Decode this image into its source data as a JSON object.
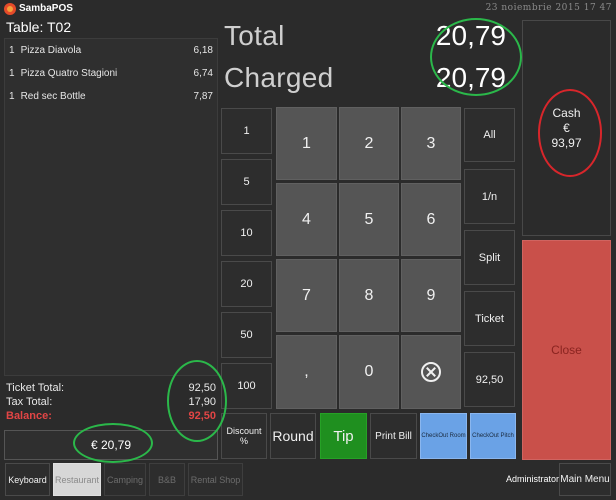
{
  "app": {
    "name": "SambaPOS",
    "datetime": "23 noiembrie 2015 17 47"
  },
  "ticket": {
    "table_label": "Table: T02",
    "orders": [
      {
        "qty": "1",
        "name": "Pizza Diavola",
        "price": "6,18"
      },
      {
        "qty": "1",
        "name": "Pizza Quatro Stagioni",
        "price": "6,74"
      },
      {
        "qty": "1",
        "name": "Red sec Bottle",
        "price": "7,87"
      }
    ],
    "ticket_total_label": "Ticket Total:",
    "ticket_total": "92,50",
    "tax_total_label": "Tax Total:",
    "tax_total": "17,90",
    "balance_label": "Balance:",
    "balance": "92,50",
    "amount_box": "€ 20,79"
  },
  "summary": {
    "total_label": "Total",
    "total_value": "20,79",
    "charged_label": "Charged",
    "charged_value": "20,79"
  },
  "amount_buttons": [
    "1",
    "5",
    "10",
    "20",
    "50",
    "100"
  ],
  "keypad": {
    "k1": "1",
    "k2": "2",
    "k3": "3",
    "k4": "4",
    "k5": "5",
    "k6": "6",
    "k7": "7",
    "k8": "8",
    "k9": "9",
    "kcomma": ",",
    "k0": "0"
  },
  "split_buttons": [
    "All",
    "1/n",
    "Split",
    "Ticket",
    "92,50"
  ],
  "actions": {
    "discount": "Discount %",
    "round": "Round",
    "tip": "Tip",
    "print_bill": "Print Bill",
    "checkout_room": "CheckOut Room",
    "checkout_pitch": "CheckOut Pitch"
  },
  "payment": {
    "method": "Cash",
    "currency": "€",
    "amount": "93,97",
    "close": "Close"
  },
  "bottom_bar": {
    "keyboard": "Keyboard",
    "tabs": [
      "Restaurant",
      "Camping",
      "B&B",
      "Rental Shop"
    ],
    "user": "Administrator",
    "main_menu": "Main Menu"
  },
  "colors": {
    "tip": "#1f8f1f",
    "checkout": "#6aa2e6",
    "close": "#c9504a",
    "balance": "#e24545",
    "annotation_green": "#2bb84a",
    "annotation_red": "#d8262b"
  }
}
